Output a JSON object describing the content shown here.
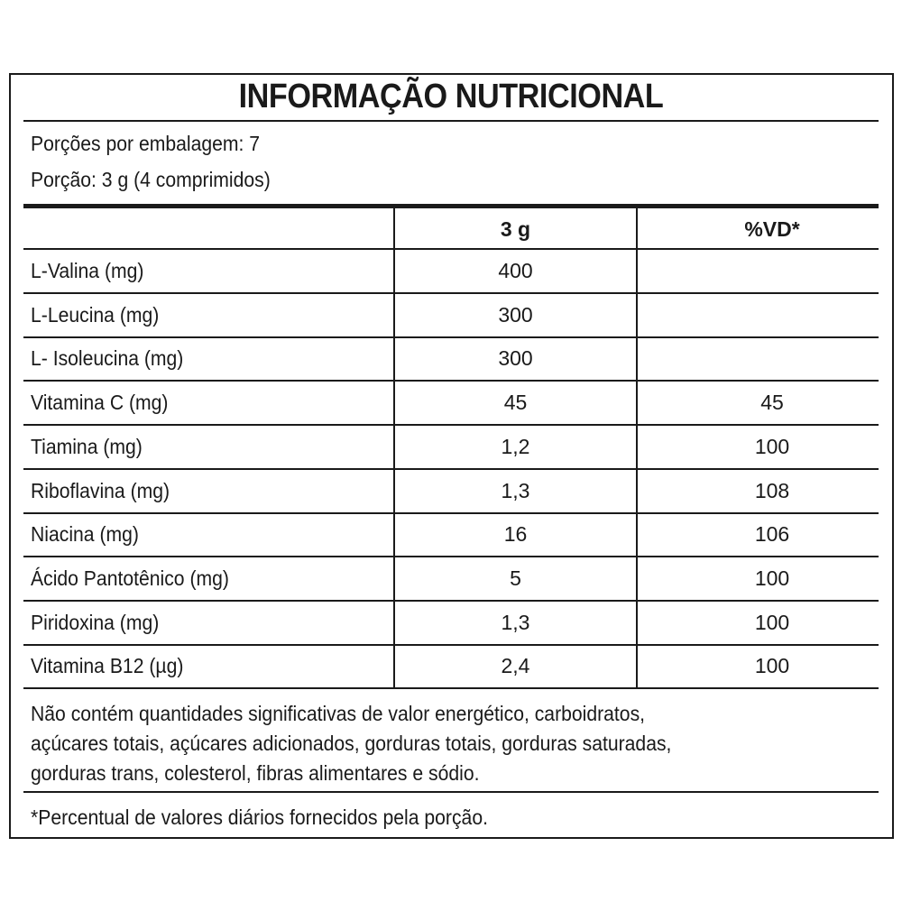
{
  "title": "INFORMAÇÃO NUTRICIONAL",
  "servings_per_package": "Porções por embalagem: 7",
  "serving_size": "Porção: 3 g (4 comprimidos)",
  "columns": [
    "",
    "3 g",
    "%VD*"
  ],
  "rows": [
    {
      "name": "L-Valina (mg)",
      "amount": "400",
      "dv": ""
    },
    {
      "name": "L-Leucina (mg)",
      "amount": "300",
      "dv": ""
    },
    {
      "name": "L- Isoleucina (mg)",
      "amount": "300",
      "dv": ""
    },
    {
      "name": "Vitamina C (mg)",
      "amount": "45",
      "dv": "45"
    },
    {
      "name": "Tiamina (mg)",
      "amount": "1,2",
      "dv": "100"
    },
    {
      "name": "Riboflavina (mg)",
      "amount": "1,3",
      "dv": "108"
    },
    {
      "name": "Niacina (mg)",
      "amount": "16",
      "dv": "106"
    },
    {
      "name": "Ácido Pantotênico (mg)",
      "amount": "5",
      "dv": "100"
    },
    {
      "name": " Piridoxina (mg)",
      "amount": "1,3",
      "dv": "100"
    },
    {
      "name": "Vitamina B12 (µg)",
      "amount": "2,4",
      "dv": "100"
    }
  ],
  "note_lines": [
    "Não contém quantidades significativas de valor energético, carboidratos,",
    "açúcares totais, açúcares adicionados, gorduras totais, gorduras saturadas,",
    "gorduras trans, colesterol, fibras alimentares e sódio."
  ],
  "footnote": "*Percentual de valores diários fornecidos pela porção."
}
